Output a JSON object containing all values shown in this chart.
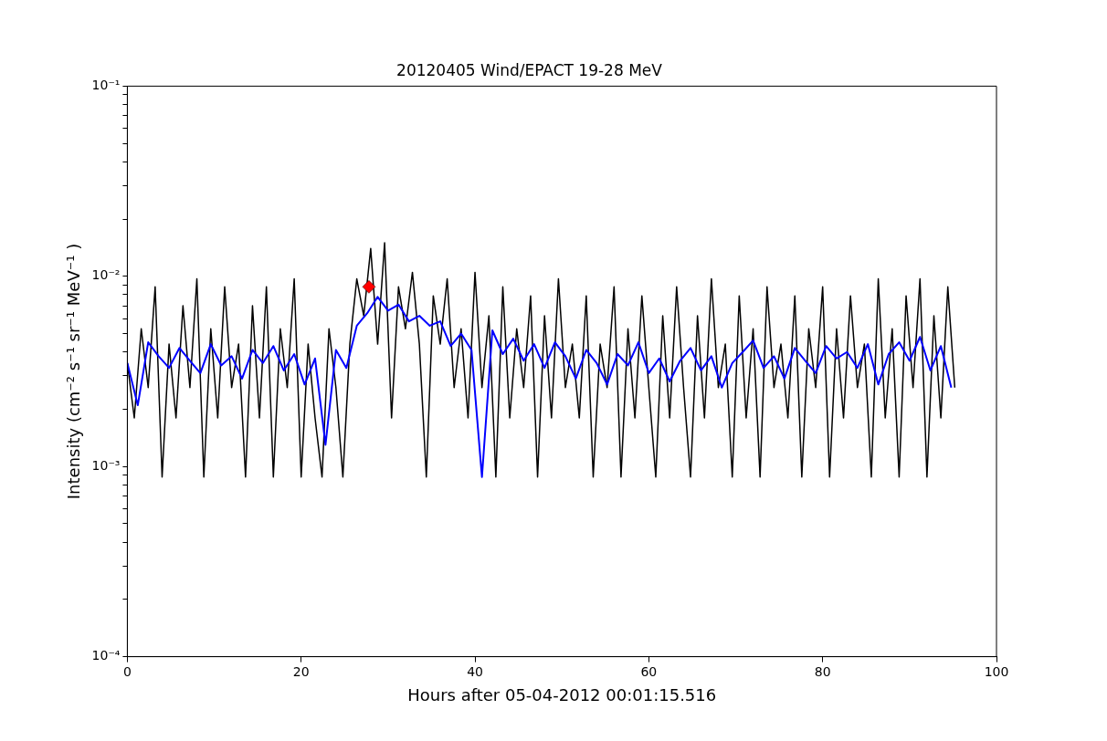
{
  "chart_data": {
    "type": "line",
    "title": "20120405 Wind/EPACT 19-28 MeV",
    "xlabel": "Hours after 05-04-2012 00:01:15.516",
    "ylabel": "Intensity (cm⁻² s⁻¹ sr⁻¹ MeV⁻¹ )",
    "log": "y",
    "grid": false,
    "legend": false,
    "xlim": [
      0,
      100
    ],
    "xticks": [
      0,
      20,
      40,
      60,
      80,
      100
    ],
    "ylim": [
      0.0001,
      0.1
    ],
    "yticks": [
      {
        "value": 0.0001,
        "label": "10⁻⁴"
      },
      {
        "value": 0.0002,
        "label": null
      },
      {
        "value": 0.0003,
        "label": null
      },
      {
        "value": 0.0004,
        "label": null
      },
      {
        "value": 0.0005,
        "label": null
      },
      {
        "value": 0.0006,
        "label": null
      },
      {
        "value": 0.0007,
        "label": null
      },
      {
        "value": 0.0008,
        "label": null
      },
      {
        "value": 0.0009,
        "label": null
      },
      {
        "value": 0.001,
        "label": "10⁻³"
      },
      {
        "value": 0.002,
        "label": null
      },
      {
        "value": 0.003,
        "label": null
      },
      {
        "value": 0.004,
        "label": null
      },
      {
        "value": 0.005,
        "label": null
      },
      {
        "value": 0.006,
        "label": null
      },
      {
        "value": 0.007,
        "label": null
      },
      {
        "value": 0.008,
        "label": null
      },
      {
        "value": 0.009,
        "label": null
      },
      {
        "value": 0.01,
        "label": "10⁻²"
      },
      {
        "value": 0.02,
        "label": null
      },
      {
        "value": 0.03,
        "label": null
      },
      {
        "value": 0.04,
        "label": null
      },
      {
        "value": 0.05,
        "label": null
      },
      {
        "value": 0.06,
        "label": null
      },
      {
        "value": 0.07,
        "label": null
      },
      {
        "value": 0.08,
        "label": null
      },
      {
        "value": 0.09,
        "label": null
      },
      {
        "value": 0.1,
        "label": "10⁻¹"
      }
    ],
    "series": [
      {
        "color": "#000000",
        "marker": "none",
        "x": [
          0,
          0.8,
          1.6,
          2.4,
          3.2,
          4,
          4.8,
          5.6,
          6.4,
          7.2,
          8,
          8.8,
          9.6,
          10.4,
          11.2,
          12,
          12.8,
          13.6,
          14.4,
          15.2,
          16,
          16.8,
          17.6,
          18.4,
          19.2,
          20,
          20.8,
          21.6,
          22.4,
          23.2,
          24,
          24.8,
          25.6,
          26.4,
          27.2,
          28,
          28.8,
          29.6,
          30.4,
          31.2,
          32,
          32.8,
          33.6,
          34.4,
          35.2,
          36,
          36.8,
          37.6,
          38.4,
          39.2,
          40,
          40.8,
          41.6,
          42.4,
          43.2,
          44,
          44.8,
          45.6,
          46.4,
          47.2,
          48,
          48.8,
          49.6,
          50.4,
          51.2,
          52,
          52.8,
          53.6,
          54.4,
          55.2,
          56,
          56.8,
          57.6,
          58.4,
          59.2,
          60,
          60.8,
          61.6,
          62.4,
          63.2,
          64,
          64.8,
          65.6,
          66.4,
          67.2,
          68,
          68.8,
          69.6,
          70.4,
          71.2,
          72,
          72.8,
          73.6,
          74.4,
          75.2,
          76,
          76.8,
          77.6,
          78.4,
          79.2,
          80,
          80.8,
          81.6,
          82.4,
          83.2,
          84,
          84.8,
          85.6,
          86.4,
          87.2,
          88,
          88.8,
          89.6,
          90.4,
          91.2,
          92,
          92.8,
          93.6,
          94.4,
          95.2
        ],
        "values": [
          0.0035,
          0.0018,
          0.0053,
          0.0026,
          0.0088,
          0.00088,
          0.0044,
          0.0018,
          0.007,
          0.0026,
          0.0097,
          0.00088,
          0.0053,
          0.0018,
          0.0088,
          0.0026,
          0.0044,
          0.00088,
          0.007,
          0.0018,
          0.0088,
          0.00088,
          0.0053,
          0.0026,
          0.0097,
          0.00088,
          0.0044,
          0.0018,
          0.00088,
          0.0053,
          0.0026,
          0.00088,
          0.0044,
          0.0097,
          0.0062,
          0.014,
          0.0044,
          0.015,
          0.0018,
          0.0088,
          0.0053,
          0.0105,
          0.0044,
          0.00088,
          0.0079,
          0.0044,
          0.0097,
          0.0026,
          0.0053,
          0.0018,
          0.0105,
          0.0026,
          0.0062,
          0.00088,
          0.0088,
          0.0018,
          0.0053,
          0.0026,
          0.0079,
          0.00088,
          0.0062,
          0.0018,
          0.0097,
          0.0026,
          0.0044,
          0.0018,
          0.0079,
          0.00088,
          0.0044,
          0.0026,
          0.0088,
          0.00088,
          0.0053,
          0.0018,
          0.0079,
          0.0026,
          0.00088,
          0.0062,
          0.0018,
          0.0088,
          0.0026,
          0.00088,
          0.0062,
          0.0018,
          0.0097,
          0.0026,
          0.0044,
          0.00088,
          0.0079,
          0.0018,
          0.0053,
          0.00088,
          0.0088,
          0.0026,
          0.0044,
          0.0018,
          0.0079,
          0.00088,
          0.0053,
          0.0026,
          0.0088,
          0.00088,
          0.0053,
          0.0018,
          0.0079,
          0.0026,
          0.0044,
          0.00088,
          0.0097,
          0.0018,
          0.0053,
          0.00088,
          0.0079,
          0.0026,
          0.0097,
          0.00088,
          0.0062,
          0.0018,
          0.0088,
          0.0026
        ]
      },
      {
        "color": "#0000ff",
        "marker": "none",
        "x": [
          0,
          1.2,
          2.4,
          3.6,
          4.8,
          6,
          7.2,
          8.4,
          9.6,
          10.8,
          12,
          13.2,
          14.4,
          15.6,
          16.8,
          18,
          19.2,
          20.4,
          21.6,
          22.8,
          24,
          25.2,
          26.4,
          27.6,
          28.8,
          30,
          31.2,
          32.4,
          33.6,
          34.8,
          36,
          37.2,
          38.4,
          39.6,
          40.8,
          42,
          43.2,
          44.4,
          45.6,
          46.8,
          48,
          49.2,
          50.4,
          51.6,
          52.8,
          54,
          55.2,
          56.4,
          57.6,
          58.8,
          60,
          61.2,
          62.4,
          63.6,
          64.8,
          66,
          67.2,
          68.4,
          69.6,
          70.8,
          72,
          73.2,
          74.4,
          75.6,
          76.8,
          78,
          79.2,
          80.4,
          81.6,
          82.8,
          84,
          85.2,
          86.4,
          87.6,
          88.8,
          90,
          91.2,
          92.4,
          93.6,
          94.8
        ],
        "values": [
          0.0035,
          0.0021,
          0.0045,
          0.0038,
          0.0033,
          0.0042,
          0.0036,
          0.0031,
          0.0044,
          0.0034,
          0.0038,
          0.0029,
          0.0041,
          0.0035,
          0.0043,
          0.0032,
          0.0039,
          0.0027,
          0.0037,
          0.0013,
          0.0041,
          0.0033,
          0.0055,
          0.0064,
          0.0078,
          0.0066,
          0.0071,
          0.0058,
          0.0062,
          0.0055,
          0.0058,
          0.0043,
          0.005,
          0.0041,
          0.00088,
          0.0052,
          0.0039,
          0.0047,
          0.0036,
          0.0044,
          0.0033,
          0.0045,
          0.0038,
          0.0029,
          0.0041,
          0.0035,
          0.0027,
          0.0039,
          0.0034,
          0.0045,
          0.0031,
          0.0037,
          0.0028,
          0.0036,
          0.0042,
          0.0032,
          0.0038,
          0.0026,
          0.0035,
          0.004,
          0.0046,
          0.0033,
          0.0038,
          0.0029,
          0.0042,
          0.0036,
          0.0031,
          0.0043,
          0.0037,
          0.004,
          0.0033,
          0.0044,
          0.0027,
          0.0039,
          0.0045,
          0.0036,
          0.0048,
          0.0032,
          0.0043,
          0.0026
        ]
      },
      {
        "type": "scatter",
        "color": "#ff0000",
        "marker": "diamond",
        "x": [
          27.8
        ],
        "values": [
          0.0088
        ]
      }
    ]
  }
}
